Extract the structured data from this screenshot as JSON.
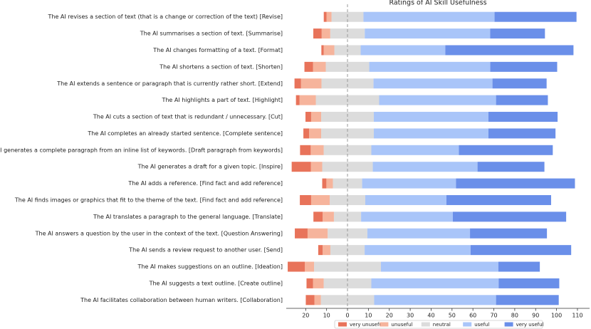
{
  "chart_data": {
    "type": "bar",
    "title": "Ratings of AI Skill Usefulness",
    "categories": [
      "The AI revises a section of text (that is a change or correction of the text) [Revise]",
      "The AI summarises a section of text. [Summarise]",
      "The AI changes formatting of a text. [Format]",
      "The AI shortens a section of text. [Shorten]",
      "The AI extends a sentence or paragraph that is currently rather short. [Extend]",
      "The AI highlights a part of text. [Highlight]",
      "The AI cuts a section of text that is redundant / unnecessary. [Cut]",
      "The AI completes an already started sentence. [Complete sentence]",
      "The AI generates a complete paragraph from an inline list of keywords. [Draft paragraph from keywords]",
      "The AI generates a draft for a given topic. [Inspire]",
      "The AI adds a reference. [Find fact and add reference]",
      "The AI finds images or graphics that fit to the theme of the text. [Find fact and add reference]",
      "The AI translates a paragraph to the general language. [Translate]",
      "The AI answers a question by the user in the context of the text. [Question Answering]",
      "The AI sends a review request to another user. [Send]",
      "The AI makes suggestions on an outline. [Ideation]",
      "The AI suggests a text outline. [Create outline]",
      "The AI facilitates collaboration between human writers. [Collaboration]"
    ],
    "series": [
      {
        "name": "very unuseful",
        "color": "#e8735a",
        "values": [
          1.3,
          4.0,
          1.1,
          4.1,
          3.1,
          1.7,
          2.7,
          2.7,
          5.1,
          9.2,
          2.0,
          5.4,
          4.4,
          6.1,
          2.1,
          8.2,
          3.1,
          4.1
        ]
      },
      {
        "name": "unuseful",
        "color": "#f6b49c",
        "values": [
          2.4,
          4.1,
          5.1,
          6.1,
          9.8,
          7.8,
          4.8,
          5.8,
          6.2,
          5.4,
          3.1,
          8.9,
          5.4,
          9.6,
          3.7,
          4.4,
          5.1,
          3.1
        ]
      },
      {
        "name": "neutral",
        "color": "#dcdcdc",
        "values": [
          15.3,
          16.5,
          12.6,
          20.8,
          24.9,
          30.3,
          25.2,
          25.2,
          22.8,
          24.2,
          14.0,
          17.0,
          13.0,
          19.0,
          16.4,
          32.0,
          22.8,
          25.5
        ]
      },
      {
        "name": "useful",
        "color": "#a9c5f9",
        "values": [
          62.7,
          60.0,
          40.5,
          57.9,
          56.9,
          55.9,
          54.8,
          54.8,
          41.9,
          50.1,
          44.9,
          38.8,
          43.9,
          49.1,
          50.7,
          56.2,
          60.9,
          58.3
        ]
      },
      {
        "name": "very useful",
        "color": "#6a8fe9",
        "values": [
          39.2,
          26.2,
          61.3,
          32.0,
          25.9,
          24.8,
          33.1,
          32.1,
          44.9,
          32.0,
          56.9,
          50.1,
          54.2,
          36.8,
          48.1,
          19.8,
          29.0,
          30.0
        ]
      }
    ],
    "xlim": [
      -29.3,
      115.8
    ],
    "xticks": [
      {
        "value": -20,
        "label": "20"
      },
      {
        "value": -10,
        "label": "10"
      },
      0,
      10,
      20,
      30,
      40,
      50,
      60,
      70,
      80,
      90,
      100,
      110
    ]
  }
}
